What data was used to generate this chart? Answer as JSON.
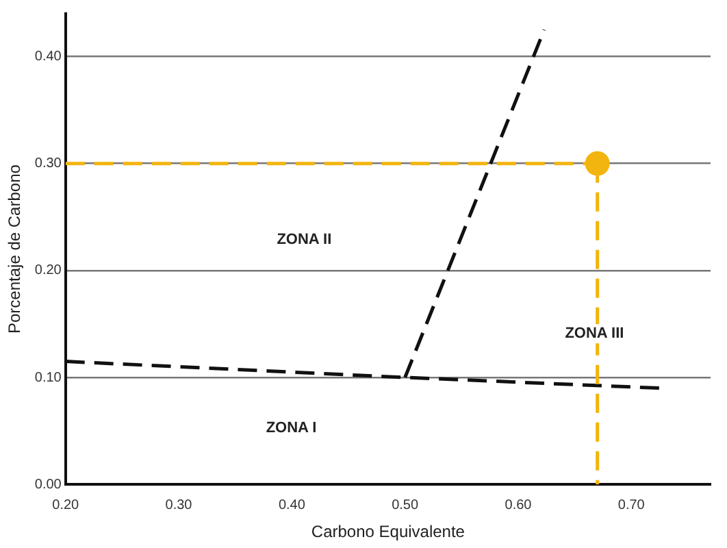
{
  "chart_data": {
    "type": "line",
    "xlabel": "Carbono Equivalente",
    "ylabel": "Porcentaje de Carbono",
    "xlim": [
      0.2,
      0.77
    ],
    "xticks": [
      {
        "value": 0.2,
        "label": "0.20"
      },
      {
        "value": 0.3,
        "label": "0.30"
      },
      {
        "value": 0.4,
        "label": "0.40"
      },
      {
        "value": 0.5,
        "label": "0.50"
      },
      {
        "value": 0.6,
        "label": "0.60"
      },
      {
        "value": 0.7,
        "label": "0.70"
      }
    ],
    "ylim": [
      0,
      0.44
    ],
    "yticks": [
      {
        "value": 0,
        "label": "0.00"
      },
      {
        "value": 0.1,
        "label": "0.10"
      },
      {
        "value": 0.2,
        "label": "0.20"
      },
      {
        "value": 0.3,
        "label": "0.30"
      },
      {
        "value": 0.4,
        "label": "0.40"
      }
    ],
    "grid": "y",
    "legend": false,
    "series": [
      {
        "type": "line",
        "color": "#f2b50f",
        "x": [
          0.2,
          0.67
        ],
        "values": [
          0.3,
          0.3
        ],
        "line_style": "dashed",
        "marker": "none"
      },
      {
        "type": "line",
        "color": "#f2b50f",
        "x": [
          0.67,
          0.67
        ],
        "values": [
          0.3,
          0
        ],
        "line_style": "dashed",
        "marker": "none"
      },
      {
        "type": "line",
        "color": "#111111",
        "x": [
          0.2,
          0.5,
          0.725
        ],
        "values": [
          0.115,
          0.1,
          0.09
        ],
        "line_style": "dashed",
        "marker": "none"
      },
      {
        "type": "line",
        "color": "#111111",
        "x": [
          0.5,
          0.623
        ],
        "values": [
          0.1,
          0.425
        ],
        "line_style": "dashed",
        "marker": "none"
      },
      {
        "type": "scatter",
        "color": "#f2b50f",
        "x": [
          0.67
        ],
        "values": [
          0.3
        ],
        "marker": "circle"
      }
    ],
    "annotations": [
      "ZONA I",
      "ZONA II",
      "ZONA III"
    ]
  }
}
